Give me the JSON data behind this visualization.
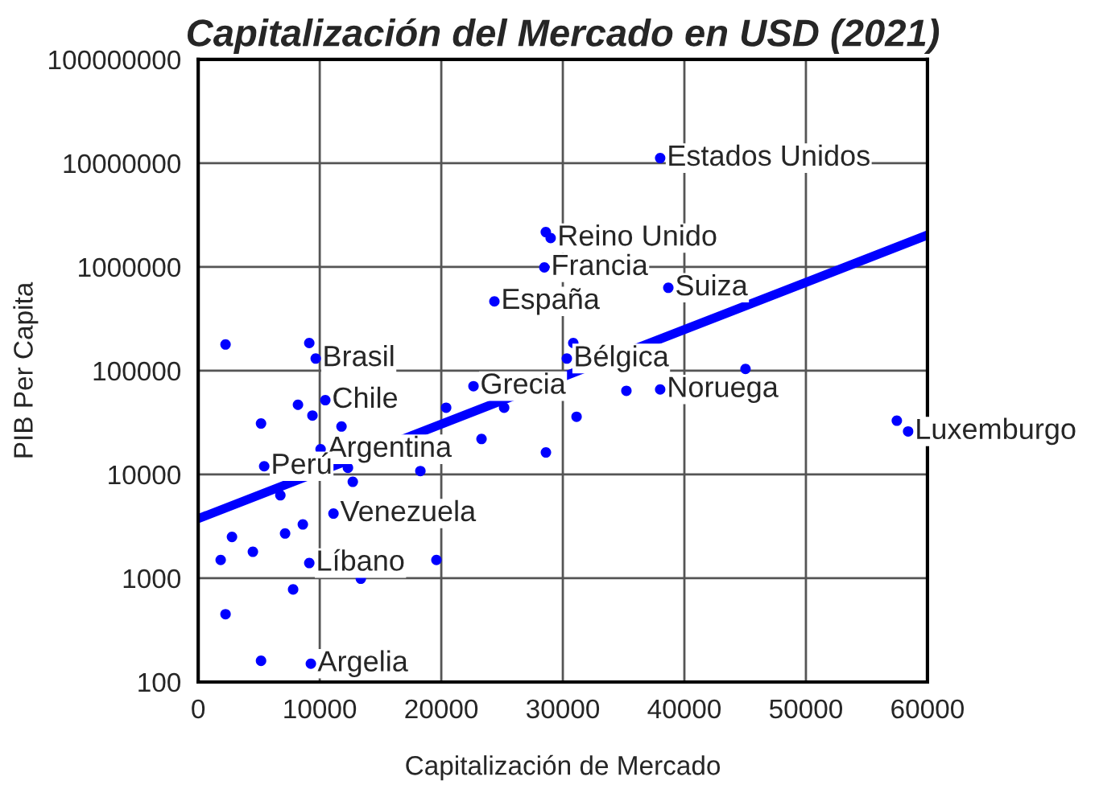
{
  "chart_data": {
    "type": "scatter",
    "title": "Capitalización del Mercado en USD (2021)",
    "xlabel": "Capitalización de Mercado",
    "ylabel": "PIB Per Capita",
    "xlim": [
      0,
      60000
    ],
    "xticks": [
      0,
      10000,
      20000,
      30000,
      40000,
      50000,
      60000
    ],
    "ylim": [
      100,
      100000000
    ],
    "yticks": [
      100,
      1000,
      10000,
      100000,
      1000000,
      10000000,
      100000000
    ],
    "log": "y",
    "grid": true,
    "legend": false,
    "series": [
      {
        "marker": "circle",
        "color": "#0000ff",
        "x": [
          38010,
          28600,
          29000,
          28480,
          24370,
          38680,
          30330,
          30860,
          38010,
          45030,
          35230,
          31130,
          57480,
          58410,
          22650,
          25170,
          28610,
          2250,
          9140,
          9670,
          8210,
          9400,
          10460,
          5170,
          11790,
          20400,
          23310,
          10070,
          5430,
          12320,
          18280,
          12720,
          6760,
          11130,
          2780,
          7150,
          8610,
          4500,
          1850,
          9140,
          19600,
          13380,
          7810,
          2250,
          5170,
          9270
        ],
        "values": [
          11200000,
          2170000,
          1900000,
          990000,
          466000,
          630000,
          131000,
          185000,
          66000,
          104000,
          64000,
          36000,
          33000,
          26000,
          71000,
          44000,
          16300,
          179000,
          185000,
          131000,
          47000,
          37000,
          52000,
          31000,
          29000,
          44000,
          22000,
          17500,
          12000,
          11600,
          10800,
          8500,
          6300,
          4200,
          2500,
          2700,
          3300,
          1800,
          1500,
          1400,
          1500,
          990,
          780,
          450,
          160,
          150
        ]
      },
      {
        "type": "line",
        "color": "#0000ff",
        "x": [
          0,
          60000
        ],
        "values": [
          3750,
          2030000
        ]
      }
    ],
    "annotations": [
      {
        "text": "Estados Unidos",
        "x": 38010,
        "y": 11200000
      },
      {
        "text": "Reino Unido",
        "x": 29000,
        "y": 1900000
      },
      {
        "text": "Francia",
        "x": 28480,
        "y": 990000
      },
      {
        "text": "España",
        "x": 24370,
        "y": 466000
      },
      {
        "text": "Suiza",
        "x": 38680,
        "y": 630000
      },
      {
        "text": "Bélgica",
        "x": 30330,
        "y": 131000
      },
      {
        "text": "Noruega",
        "x": 38010,
        "y": 66000
      },
      {
        "text": "Luxemburgo",
        "x": 58410,
        "y": 26000
      },
      {
        "text": "Grecia",
        "x": 22650,
        "y": 71000
      },
      {
        "text": "Brasil",
        "x": 9670,
        "y": 131000
      },
      {
        "text": "Chile",
        "x": 10460,
        "y": 52000
      },
      {
        "text": "Argentina",
        "x": 10070,
        "y": 17500
      },
      {
        "text": "Perú",
        "x": 5430,
        "y": 12000
      },
      {
        "text": "Venezuela",
        "x": 11130,
        "y": 4200
      },
      {
        "text": "Líbano",
        "x": 9140,
        "y": 1400
      },
      {
        "text": "Argelia",
        "x": 9270,
        "y": 150
      }
    ]
  }
}
